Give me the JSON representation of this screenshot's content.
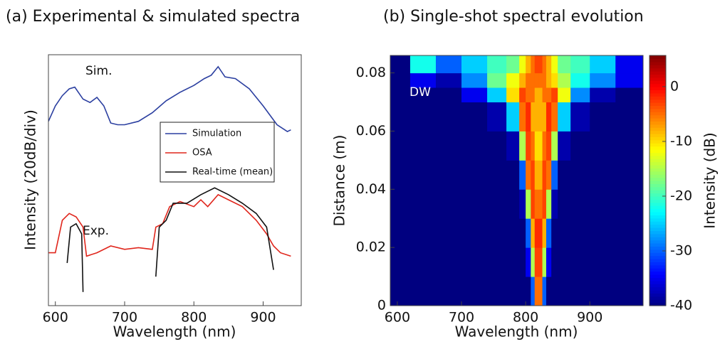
{
  "chart_data": [
    {
      "type": "line",
      "title": "(a) Experimental & simulated spectra",
      "x_label": "Wavelength (nm)",
      "y_label": "Intensity (20dB/div)",
      "xlim": [
        590,
        955
      ],
      "xticks": [
        600,
        700,
        800,
        900
      ],
      "ylim": [
        -147,
        0
      ],
      "annotations": [
        "Sim.",
        "Exp."
      ],
      "series": [
        {
          "name": "Simulation",
          "color": "#2b3fa0",
          "x": [
            590,
            600,
            610,
            620,
            628,
            640,
            650,
            660,
            670,
            680,
            690,
            700,
            720,
            740,
            760,
            780,
            800,
            815,
            825,
            835,
            845,
            860,
            880,
            900,
            920,
            935,
            940
          ],
          "values": [
            -39,
            -30,
            -24,
            -20,
            -19,
            -26,
            -28,
            -25,
            -30,
            -40,
            -41,
            -41,
            -39,
            -34,
            -27,
            -22,
            -18,
            -14,
            -12,
            -7,
            -13,
            -14,
            -20,
            -30,
            -41,
            -45,
            -44
          ]
        },
        {
          "name": "OSA",
          "color": "#e0261c",
          "x": [
            590,
            600,
            610,
            620,
            630,
            640,
            645,
            660,
            680,
            700,
            720,
            740,
            745,
            755,
            765,
            780,
            800,
            810,
            820,
            835,
            850,
            870,
            890,
            905,
            915,
            925,
            940
          ],
          "values": [
            -116,
            -116,
            -97,
            -93,
            -95,
            -101,
            -118,
            -116,
            -112,
            -114,
            -113,
            -114,
            -101,
            -99,
            -89,
            -86,
            -89,
            -85,
            -89,
            -82,
            -85,
            -89,
            -97,
            -105,
            -112,
            -116,
            -118
          ]
        },
        {
          "name": "Real-time (mean)",
          "color": "#111111",
          "x": [
            617,
            622,
            630,
            638,
            640,
            700,
            745,
            750,
            760,
            770,
            790,
            810,
            830,
            850,
            870,
            890,
            905,
            915
          ],
          "values": [
            -122,
            -101,
            -99,
            -105,
            -139,
            null,
            -130,
            -101,
            -97,
            -87,
            -87,
            -82,
            -78,
            -82,
            -87,
            -93,
            -101,
            -126
          ]
        }
      ]
    },
    {
      "type": "heatmap",
      "title": "(b) Single-shot spectral evolution",
      "x_label": "Wavelength (nm)",
      "y_label": "Distance (m)",
      "colorbar_label": "Intensity (dB)",
      "annotations": [
        "DW"
      ],
      "xlim": [
        589,
        983
      ],
      "xticks": [
        600,
        700,
        800,
        900
      ],
      "ylim": [
        0,
        0.086
      ],
      "yticks": [
        0,
        0.02,
        0.04,
        0.06,
        0.08
      ],
      "clim": [
        -40,
        5.7
      ],
      "cticks": [
        0,
        -10,
        -20,
        -30,
        -40
      ],
      "colormap": "jet",
      "x_edges": [
        589,
        620,
        660,
        700,
        740,
        770,
        790,
        800,
        808,
        814,
        820,
        826,
        832,
        840,
        850,
        870,
        900,
        940,
        983
      ],
      "y_edges": [
        0,
        0.01,
        0.02,
        0.03,
        0.04,
        0.05,
        0.06,
        0.07,
        0.075,
        0.08,
        0.086
      ],
      "z": [
        [
          -40,
          -40,
          -40,
          -40,
          -40,
          -40,
          -40,
          -40,
          -30,
          -5,
          -5,
          -30,
          -40,
          -40,
          -40,
          -40,
          -40,
          -40
        ],
        [
          -40,
          -40,
          -40,
          -40,
          -40,
          -40,
          -40,
          -35,
          -15,
          -3,
          -3,
          -15,
          -35,
          -40,
          -40,
          -40,
          -40,
          -40
        ],
        [
          -40,
          -40,
          -40,
          -40,
          -40,
          -40,
          -40,
          -30,
          -8,
          -2,
          -2,
          -8,
          -30,
          -40,
          -40,
          -40,
          -40,
          -40
        ],
        [
          -40,
          -40,
          -40,
          -40,
          -40,
          -40,
          -38,
          -15,
          -3,
          -5,
          -5,
          -3,
          -15,
          -38,
          -40,
          -40,
          -40,
          -40
        ],
        [
          -40,
          -40,
          -40,
          -40,
          -40,
          -40,
          -30,
          -5,
          -3,
          -8,
          -8,
          -3,
          -5,
          -30,
          -40,
          -40,
          -40,
          -40
        ],
        [
          -40,
          -40,
          -40,
          -40,
          -40,
          -38,
          -15,
          -3,
          -5,
          -10,
          -10,
          -5,
          -3,
          -15,
          -38,
          -40,
          -40,
          -40
        ],
        [
          -40,
          -40,
          -40,
          -40,
          -38,
          -25,
          -5,
          -2,
          -8,
          -8,
          -8,
          -8,
          -2,
          -5,
          -25,
          -38,
          -40,
          -40
        ],
        [
          -40,
          -40,
          -40,
          -35,
          -25,
          -10,
          -3,
          -5,
          -5,
          -8,
          -8,
          -5,
          -5,
          -3,
          -12,
          -28,
          -38,
          -40
        ],
        [
          -40,
          -35,
          -38,
          -28,
          -18,
          -12,
          -8,
          -5,
          -5,
          -5,
          -5,
          -5,
          -8,
          -10,
          -15,
          -22,
          -28,
          -35
        ],
        [
          -40,
          -22,
          -30,
          -25,
          -20,
          -18,
          -12,
          -8,
          -5,
          -3,
          -3,
          -5,
          -8,
          -12,
          -18,
          -20,
          -25,
          -35
        ]
      ]
    }
  ]
}
